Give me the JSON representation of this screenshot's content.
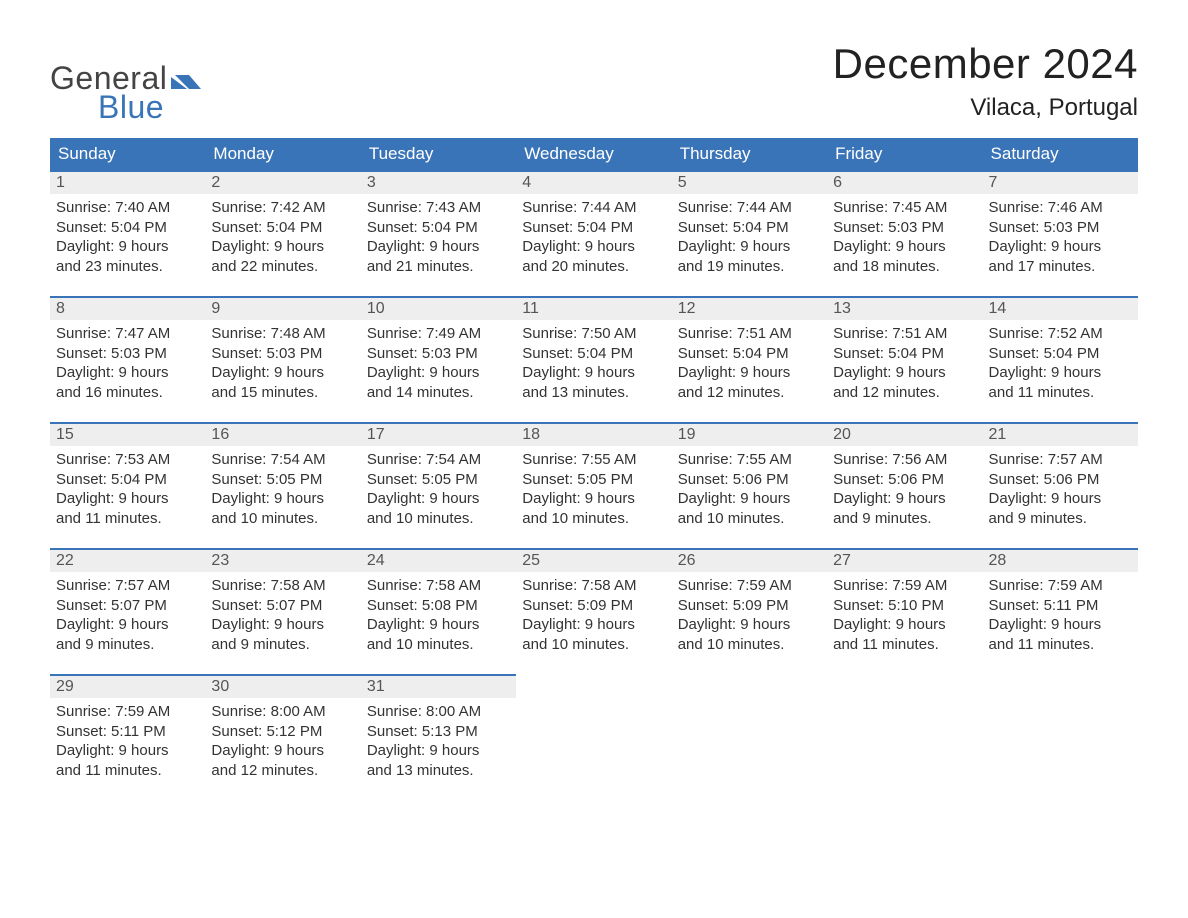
{
  "logo": {
    "word1": "General",
    "word2": "Blue",
    "icon_color": "#3a74b8",
    "text1_color": "#444444"
  },
  "title": "December 2024",
  "location": "Vilaca, Portugal",
  "colors": {
    "header_bg": "#3a74b8",
    "header_text": "#ffffff",
    "daynum_bg": "#eeeeee",
    "daynum_border": "#3a74b8",
    "body_text": "#333333",
    "daynum_text": "#555555",
    "page_bg": "#ffffff"
  },
  "day_headers": [
    "Sunday",
    "Monday",
    "Tuesday",
    "Wednesday",
    "Thursday",
    "Friday",
    "Saturday"
  ],
  "weeks": [
    [
      {
        "n": "1",
        "sunrise": "7:40 AM",
        "sunset": "5:04 PM",
        "dl1": "Daylight: 9 hours",
        "dl2": "and 23 minutes."
      },
      {
        "n": "2",
        "sunrise": "7:42 AM",
        "sunset": "5:04 PM",
        "dl1": "Daylight: 9 hours",
        "dl2": "and 22 minutes."
      },
      {
        "n": "3",
        "sunrise": "7:43 AM",
        "sunset": "5:04 PM",
        "dl1": "Daylight: 9 hours",
        "dl2": "and 21 minutes."
      },
      {
        "n": "4",
        "sunrise": "7:44 AM",
        "sunset": "5:04 PM",
        "dl1": "Daylight: 9 hours",
        "dl2": "and 20 minutes."
      },
      {
        "n": "5",
        "sunrise": "7:44 AM",
        "sunset": "5:04 PM",
        "dl1": "Daylight: 9 hours",
        "dl2": "and 19 minutes."
      },
      {
        "n": "6",
        "sunrise": "7:45 AM",
        "sunset": "5:03 PM",
        "dl1": "Daylight: 9 hours",
        "dl2": "and 18 minutes."
      },
      {
        "n": "7",
        "sunrise": "7:46 AM",
        "sunset": "5:03 PM",
        "dl1": "Daylight: 9 hours",
        "dl2": "and 17 minutes."
      }
    ],
    [
      {
        "n": "8",
        "sunrise": "7:47 AM",
        "sunset": "5:03 PM",
        "dl1": "Daylight: 9 hours",
        "dl2": "and 16 minutes."
      },
      {
        "n": "9",
        "sunrise": "7:48 AM",
        "sunset": "5:03 PM",
        "dl1": "Daylight: 9 hours",
        "dl2": "and 15 minutes."
      },
      {
        "n": "10",
        "sunrise": "7:49 AM",
        "sunset": "5:03 PM",
        "dl1": "Daylight: 9 hours",
        "dl2": "and 14 minutes."
      },
      {
        "n": "11",
        "sunrise": "7:50 AM",
        "sunset": "5:04 PM",
        "dl1": "Daylight: 9 hours",
        "dl2": "and 13 minutes."
      },
      {
        "n": "12",
        "sunrise": "7:51 AM",
        "sunset": "5:04 PM",
        "dl1": "Daylight: 9 hours",
        "dl2": "and 12 minutes."
      },
      {
        "n": "13",
        "sunrise": "7:51 AM",
        "sunset": "5:04 PM",
        "dl1": "Daylight: 9 hours",
        "dl2": "and 12 minutes."
      },
      {
        "n": "14",
        "sunrise": "7:52 AM",
        "sunset": "5:04 PM",
        "dl1": "Daylight: 9 hours",
        "dl2": "and 11 minutes."
      }
    ],
    [
      {
        "n": "15",
        "sunrise": "7:53 AM",
        "sunset": "5:04 PM",
        "dl1": "Daylight: 9 hours",
        "dl2": "and 11 minutes."
      },
      {
        "n": "16",
        "sunrise": "7:54 AM",
        "sunset": "5:05 PM",
        "dl1": "Daylight: 9 hours",
        "dl2": "and 10 minutes."
      },
      {
        "n": "17",
        "sunrise": "7:54 AM",
        "sunset": "5:05 PM",
        "dl1": "Daylight: 9 hours",
        "dl2": "and 10 minutes."
      },
      {
        "n": "18",
        "sunrise": "7:55 AM",
        "sunset": "5:05 PM",
        "dl1": "Daylight: 9 hours",
        "dl2": "and 10 minutes."
      },
      {
        "n": "19",
        "sunrise": "7:55 AM",
        "sunset": "5:06 PM",
        "dl1": "Daylight: 9 hours",
        "dl2": "and 10 minutes."
      },
      {
        "n": "20",
        "sunrise": "7:56 AM",
        "sunset": "5:06 PM",
        "dl1": "Daylight: 9 hours",
        "dl2": "and 9 minutes."
      },
      {
        "n": "21",
        "sunrise": "7:57 AM",
        "sunset": "5:06 PM",
        "dl1": "Daylight: 9 hours",
        "dl2": "and 9 minutes."
      }
    ],
    [
      {
        "n": "22",
        "sunrise": "7:57 AM",
        "sunset": "5:07 PM",
        "dl1": "Daylight: 9 hours",
        "dl2": "and 9 minutes."
      },
      {
        "n": "23",
        "sunrise": "7:58 AM",
        "sunset": "5:07 PM",
        "dl1": "Daylight: 9 hours",
        "dl2": "and 9 minutes."
      },
      {
        "n": "24",
        "sunrise": "7:58 AM",
        "sunset": "5:08 PM",
        "dl1": "Daylight: 9 hours",
        "dl2": "and 10 minutes."
      },
      {
        "n": "25",
        "sunrise": "7:58 AM",
        "sunset": "5:09 PM",
        "dl1": "Daylight: 9 hours",
        "dl2": "and 10 minutes."
      },
      {
        "n": "26",
        "sunrise": "7:59 AM",
        "sunset": "5:09 PM",
        "dl1": "Daylight: 9 hours",
        "dl2": "and 10 minutes."
      },
      {
        "n": "27",
        "sunrise": "7:59 AM",
        "sunset": "5:10 PM",
        "dl1": "Daylight: 9 hours",
        "dl2": "and 11 minutes."
      },
      {
        "n": "28",
        "sunrise": "7:59 AM",
        "sunset": "5:11 PM",
        "dl1": "Daylight: 9 hours",
        "dl2": "and 11 minutes."
      }
    ],
    [
      {
        "n": "29",
        "sunrise": "7:59 AM",
        "sunset": "5:11 PM",
        "dl1": "Daylight: 9 hours",
        "dl2": "and 11 minutes."
      },
      {
        "n": "30",
        "sunrise": "8:00 AM",
        "sunset": "5:12 PM",
        "dl1": "Daylight: 9 hours",
        "dl2": "and 12 minutes."
      },
      {
        "n": "31",
        "sunrise": "8:00 AM",
        "sunset": "5:13 PM",
        "dl1": "Daylight: 9 hours",
        "dl2": "and 13 minutes."
      },
      null,
      null,
      null,
      null
    ]
  ],
  "labels": {
    "sunrise": "Sunrise: ",
    "sunset": "Sunset: "
  }
}
